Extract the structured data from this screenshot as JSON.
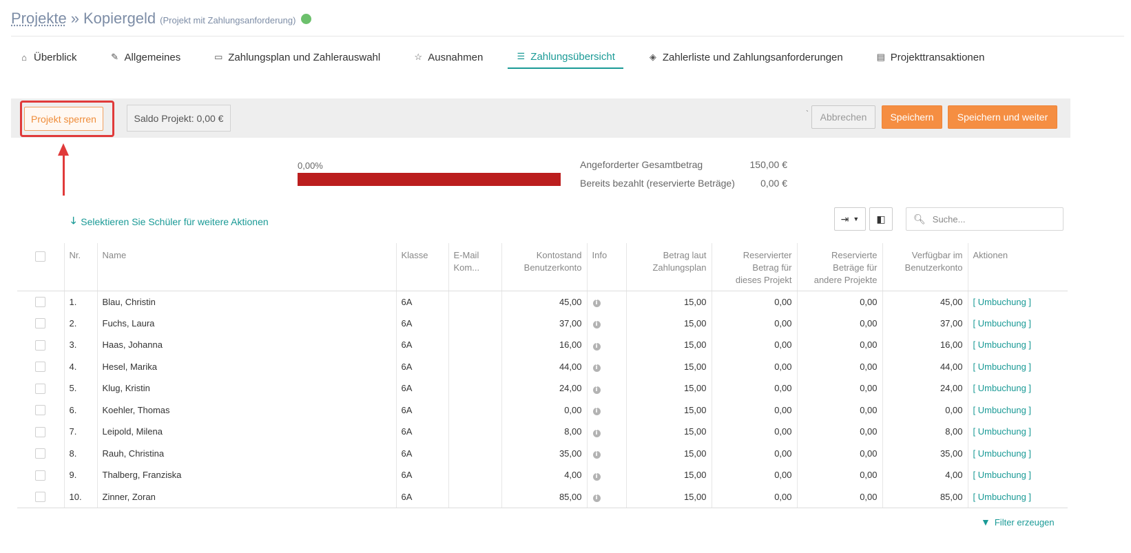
{
  "header": {
    "breadcrumb_root": "Projekte",
    "separator": "»",
    "project_name": "Kopiergeld",
    "project_type": "(Projekt mit Zahlungsanforderung)",
    "status_color": "#6cc06c"
  },
  "tabs": [
    {
      "label": "Überblick",
      "icon": "home-icon",
      "glyph": "⌂",
      "active": false
    },
    {
      "label": "Allgemeines",
      "icon": "pencil-icon",
      "glyph": "✎",
      "active": false
    },
    {
      "label": "Zahlungsplan und Zahlerauswahl",
      "icon": "credit-card-icon",
      "glyph": "▭",
      "active": false
    },
    {
      "label": "Ausnahmen",
      "icon": "star-icon",
      "glyph": "☆",
      "active": false
    },
    {
      "label": "Zahlungsübersicht",
      "icon": "list-icon",
      "glyph": "☰",
      "active": true
    },
    {
      "label": "Zahlerliste und Zahlungsanforderungen",
      "icon": "cube-icon",
      "glyph": "◈",
      "active": false
    },
    {
      "label": "Projekttransaktionen",
      "icon": "table-icon",
      "glyph": "▤",
      "active": false
    }
  ],
  "toolbar": {
    "lock_label": "Projekt sperren",
    "saldo_label": "Saldo Projekt: 0,00 €",
    "tick": "`",
    "cancel_label": "Abbrechen",
    "save_label": "Speichern",
    "save_next_label": "Speichern und weiter"
  },
  "summary": {
    "progress_label": "0,00%",
    "progress_fraction": 1.0,
    "progress_color": "#bb1e1e",
    "requested_label": "Angeforderter Gesamtbetrag",
    "requested_value": "150,00 €",
    "paid_label": "Bereits bezahlt (reservierte Beträge)",
    "paid_value": "0,00 €"
  },
  "actions": {
    "select_hint": "Selektieren Sie Schüler für weitere Aktionen",
    "search_placeholder": "Suche...",
    "filter_label": "Filter erzeugen"
  },
  "table": {
    "headers": {
      "nr": "Nr.",
      "name": "Name",
      "klasse": "Klasse",
      "email_1": "E-Mail",
      "email_2": "Kom...",
      "konto_1": "Kontostand",
      "konto_2": "Benutzerkonto",
      "info": "Info",
      "betrag_1": "Betrag laut",
      "betrag_2": "Zahlungsplan",
      "res_1": "Reservierter",
      "res_2": "Betrag für",
      "res_3": "dieses Projekt",
      "andere_1": "Reservierte",
      "andere_2": "Beträge für",
      "andere_3": "andere Projekte",
      "verf_1": "Verfügbar im",
      "verf_2": "Benutzerkonto",
      "aktionen": "Aktionen"
    },
    "rows": [
      {
        "nr": "1.",
        "name": "Blau, Christin",
        "klasse": "6A",
        "konto": "45,00",
        "betrag": "15,00",
        "reserviert": "0,00",
        "andere": "0,00",
        "verfuegbar": "45,00",
        "aktion": "[ Umbuchung ]"
      },
      {
        "nr": "2.",
        "name": "Fuchs, Laura",
        "klasse": "6A",
        "konto": "37,00",
        "betrag": "15,00",
        "reserviert": "0,00",
        "andere": "0,00",
        "verfuegbar": "37,00",
        "aktion": "[ Umbuchung ]"
      },
      {
        "nr": "3.",
        "name": "Haas, Johanna",
        "klasse": "6A",
        "konto": "16,00",
        "betrag": "15,00",
        "reserviert": "0,00",
        "andere": "0,00",
        "verfuegbar": "16,00",
        "aktion": "[ Umbuchung ]"
      },
      {
        "nr": "4.",
        "name": "Hesel, Marika",
        "klasse": "6A",
        "konto": "44,00",
        "betrag": "15,00",
        "reserviert": "0,00",
        "andere": "0,00",
        "verfuegbar": "44,00",
        "aktion": "[ Umbuchung ]"
      },
      {
        "nr": "5.",
        "name": "Klug, Kristin",
        "klasse": "6A",
        "konto": "24,00",
        "betrag": "15,00",
        "reserviert": "0,00",
        "andere": "0,00",
        "verfuegbar": "24,00",
        "aktion": "[ Umbuchung ]"
      },
      {
        "nr": "6.",
        "name": "Koehler, Thomas",
        "klasse": "6A",
        "konto": "0,00",
        "betrag": "15,00",
        "reserviert": "0,00",
        "andere": "0,00",
        "verfuegbar": "0,00",
        "aktion": "[ Umbuchung ]"
      },
      {
        "nr": "7.",
        "name": "Leipold, Milena",
        "klasse": "6A",
        "konto": "8,00",
        "betrag": "15,00",
        "reserviert": "0,00",
        "andere": "0,00",
        "verfuegbar": "8,00",
        "aktion": "[ Umbuchung ]"
      },
      {
        "nr": "8.",
        "name": "Rauh, Christina",
        "klasse": "6A",
        "konto": "35,00",
        "betrag": "15,00",
        "reserviert": "0,00",
        "andere": "0,00",
        "verfuegbar": "35,00",
        "aktion": "[ Umbuchung ]"
      },
      {
        "nr": "9.",
        "name": "Thalberg, Franziska",
        "klasse": "6A",
        "konto": "4,00",
        "betrag": "15,00",
        "reserviert": "0,00",
        "andere": "0,00",
        "verfuegbar": "4,00",
        "aktion": "[ Umbuchung ]"
      },
      {
        "nr": "10.",
        "name": "Zinner, Zoran",
        "klasse": "6A",
        "konto": "85,00",
        "betrag": "15,00",
        "reserviert": "0,00",
        "andere": "0,00",
        "verfuegbar": "85,00",
        "aktion": "[ Umbuchung ]"
      }
    ]
  }
}
